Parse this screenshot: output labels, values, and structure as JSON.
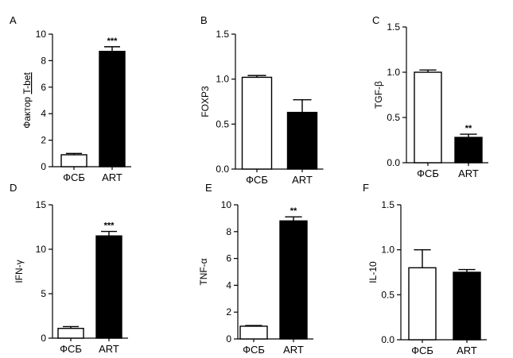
{
  "figure": {
    "panels": [
      "A",
      "B",
      "C",
      "D",
      "E",
      "F"
    ]
  },
  "colors": {
    "control": "#ffffff",
    "treated": "#000000",
    "axis": "#000000"
  },
  "chart_data": [
    {
      "type": "bar",
      "panel": "A",
      "categories": [
        "ФСБ",
        "ART"
      ],
      "values": [
        0.9,
        8.7
      ],
      "errors": [
        0.1,
        0.35
      ],
      "fills": [
        "#ffffff",
        "#000000"
      ],
      "significance": [
        "",
        "***"
      ],
      "ylabel_main": "Фактор ",
      "ylabel_marked": "T-bet",
      "ylim": [
        0,
        10
      ],
      "yticks": [
        0,
        2,
        4,
        6,
        8,
        10
      ],
      "ytick_labels": [
        "0",
        "2",
        "4",
        "6",
        "8",
        "10"
      ],
      "grid": false
    },
    {
      "type": "bar",
      "panel": "B",
      "categories": [
        "ФСБ",
        "ART"
      ],
      "values": [
        1.02,
        0.63
      ],
      "errors": [
        0.02,
        0.14
      ],
      "fills": [
        "#ffffff",
        "#000000"
      ],
      "significance": [
        "",
        ""
      ],
      "ylabel_main": "FOXP3",
      "ylabel_marked": "",
      "ylim": [
        0,
        1.5
      ],
      "yticks": [
        0,
        0.5,
        1.0,
        1.5
      ],
      "ytick_labels": [
        "0.0",
        "0.5",
        "1.0",
        "1.5"
      ],
      "grid": false
    },
    {
      "type": "bar",
      "panel": "C",
      "categories": [
        "ФСБ",
        "ART"
      ],
      "values": [
        1.0,
        0.28
      ],
      "errors": [
        0.025,
        0.035
      ],
      "fills": [
        "#ffffff",
        "#000000"
      ],
      "significance": [
        "",
        "**"
      ],
      "ylabel_main": "TGF-β",
      "ylabel_marked": "",
      "ylim": [
        0,
        1.5
      ],
      "yticks": [
        0,
        0.5,
        1.0,
        1.5
      ],
      "ytick_labels": [
        "0.0",
        "0.5",
        "1.0",
        "1.5"
      ],
      "grid": false
    },
    {
      "type": "bar",
      "panel": "D",
      "categories": [
        "ФСБ",
        "ART"
      ],
      "values": [
        1.1,
        11.5
      ],
      "errors": [
        0.2,
        0.5
      ],
      "fills": [
        "#ffffff",
        "#000000"
      ],
      "significance": [
        "",
        "***"
      ],
      "ylabel_main": "IFN-γ",
      "ylabel_marked": "",
      "ylim": [
        0,
        15
      ],
      "yticks": [
        0,
        5,
        10,
        15
      ],
      "ytick_labels": [
        "0",
        "5",
        "10",
        "15"
      ],
      "grid": false
    },
    {
      "type": "bar",
      "panel": "E",
      "categories": [
        "ФСБ",
        "ART"
      ],
      "values": [
        0.95,
        8.8
      ],
      "errors": [
        0.05,
        0.3
      ],
      "fills": [
        "#ffffff",
        "#000000"
      ],
      "significance": [
        "",
        "**"
      ],
      "ylabel_main": "TNF-α",
      "ylabel_marked": "",
      "ylim": [
        0,
        10
      ],
      "yticks": [
        0,
        2,
        4,
        6,
        8,
        10
      ],
      "ytick_labels": [
        "0",
        "2",
        "4",
        "6",
        "8",
        "10"
      ],
      "grid": false
    },
    {
      "type": "bar",
      "panel": "F",
      "categories": [
        "ФСБ",
        "ART"
      ],
      "values": [
        0.8,
        0.75
      ],
      "errors": [
        0.2,
        0.03
      ],
      "fills": [
        "#ffffff",
        "#000000"
      ],
      "significance": [
        "",
        ""
      ],
      "ylabel_main": "IL-10",
      "ylabel_marked": "",
      "ylim": [
        0,
        1.5
      ],
      "yticks": [
        0,
        0.5,
        1.0,
        1.5
      ],
      "ytick_labels": [
        "0.0",
        "0.5",
        "1.0",
        "1.5"
      ],
      "grid": false
    }
  ]
}
